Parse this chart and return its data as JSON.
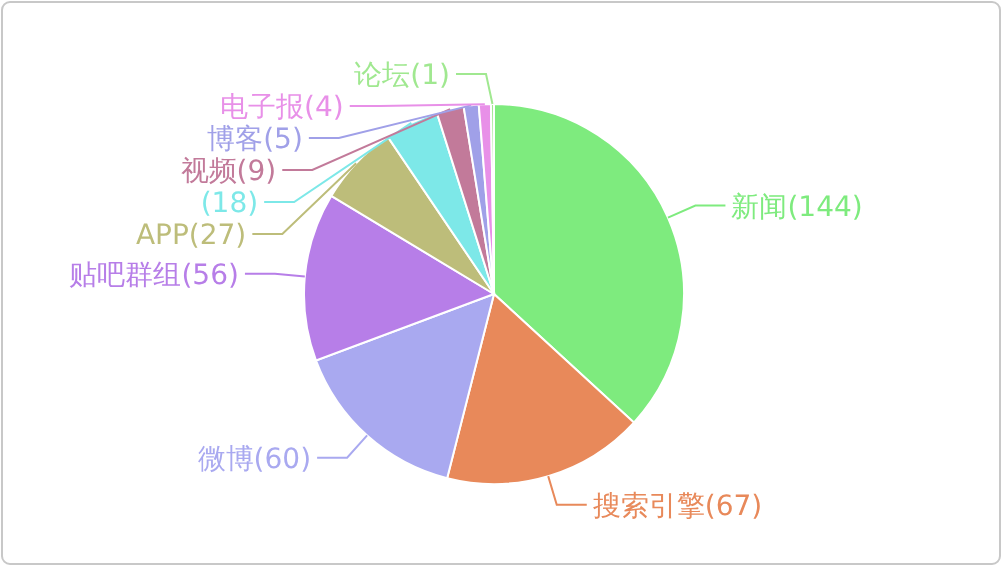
{
  "chart_data": {
    "type": "pie",
    "categories": [
      "新闻",
      "搜索引擎",
      "微博",
      "贴吧群组",
      "APP",
      null,
      "视频",
      "博客",
      "电子报",
      "论坛"
    ],
    "values": [
      144,
      67,
      60,
      56,
      27,
      18,
      9,
      5,
      4,
      1
    ],
    "colors": [
      "#7eeb7e",
      "#e8895a",
      "#a9a9f0",
      "#b77ee8",
      "#bdbd7a",
      "#7de8e8",
      "#c27a9a",
      "#a0a0e8",
      "#e890e8",
      "#a0e890"
    ],
    "value_labels": [
      "(144)",
      "(67)",
      "(60)",
      "(56)",
      "(27)",
      "(18)",
      "(9)",
      "(5)",
      "(4)",
      "(1)"
    ]
  }
}
